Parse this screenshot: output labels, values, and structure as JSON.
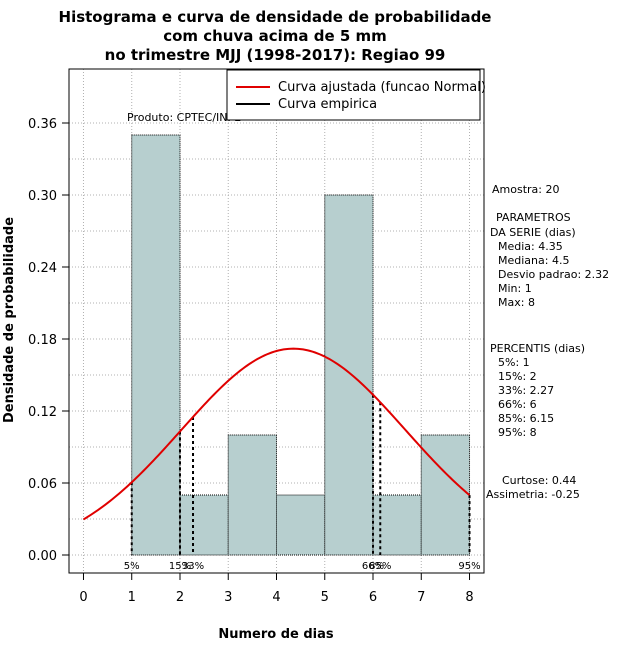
{
  "chart_data": {
    "type": "bar",
    "title_lines": [
      "Histograma e curva de densidade de probabilidade",
      "com chuva acima de 5 mm",
      "no trimestre MJJ (1998-2017): Regiao 99"
    ],
    "xlabel": "Numero de dias",
    "ylabel": "Densidade de probabilidade",
    "xlim": [
      -0.3,
      8.3
    ],
    "ylim": [
      -0.015,
      0.405
    ],
    "x_ticks": [
      0,
      1,
      2,
      3,
      4,
      5,
      6,
      7,
      8
    ],
    "y_ticks": [
      0.0,
      0.06,
      0.12,
      0.18,
      0.24,
      0.3,
      0.36
    ],
    "y_tick_labels": [
      "0.00",
      "0.06",
      "0.12",
      "0.18",
      "0.24",
      "0.30",
      "0.36"
    ],
    "histogram": [
      {
        "x0": 1,
        "x1": 2,
        "density": 0.35
      },
      {
        "x0": 2,
        "x1": 3,
        "density": 0.05
      },
      {
        "x0": 3,
        "x1": 4,
        "density": 0.1
      },
      {
        "x0": 4,
        "x1": 5,
        "density": 0.05
      },
      {
        "x0": 5,
        "x1": 6,
        "density": 0.3
      },
      {
        "x0": 6,
        "x1": 7,
        "density": 0.05
      },
      {
        "x0": 7,
        "x1": 8,
        "density": 0.1
      }
    ],
    "normal_curve": {
      "mean": 4.35,
      "sd": 2.32,
      "x_from": 0,
      "x_to": 8,
      "color": "#e00000"
    },
    "empirical_curve_color": "#000000",
    "bar_fill": "#b7cfcf",
    "percentile_lines": [
      {
        "x": 1,
        "label": "5%"
      },
      {
        "x": 2,
        "label": "15%"
      },
      {
        "x": 2.27,
        "label": "33%"
      },
      {
        "x": 6,
        "label": "66%"
      },
      {
        "x": 6.15,
        "label": "85%"
      },
      {
        "x": 8,
        "label": "95%"
      }
    ],
    "legend": [
      {
        "label": "Curva ajustada (funcao Normal)",
        "color": "#e00000"
      },
      {
        "label": "Curva empirica",
        "color": "#000000"
      }
    ],
    "legend_position": "top-right",
    "product_label": "Produto: CPTEC/INPE",
    "side_text": {
      "amostra": "Amostra: 20",
      "params_title_1": "PARAMETROS",
      "params_title_2": "DA SERIE (dias)",
      "params": [
        "Media: 4.35",
        "Mediana: 4.5",
        "Desvio padrao: 2.32",
        "Min: 1",
        "Max: 8"
      ],
      "percentis_title": "PERCENTIS (dias)",
      "percentis": [
        "5%: 1",
        "15%: 2",
        "33%: 2.27",
        "66%: 6",
        "85%: 6.15",
        "95%: 8"
      ],
      "curtose": "Curtose: 0.44",
      "assimetria": "Assimetria: -0.25"
    }
  }
}
